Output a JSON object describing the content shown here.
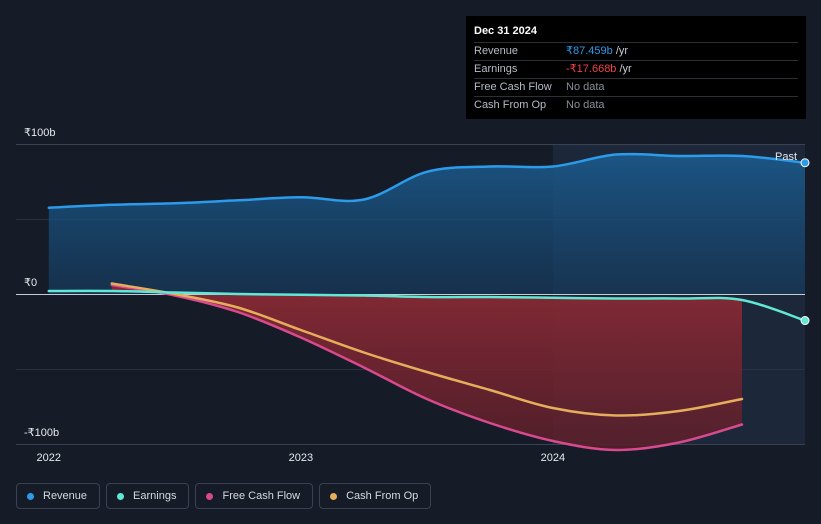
{
  "tooltip": {
    "date": "Dec 31 2024",
    "rows": [
      {
        "label": "Revenue",
        "value": "₹87.459b",
        "unit": " /yr",
        "color": "#2b9bea"
      },
      {
        "label": "Earnings",
        "value": "-₹17.668b",
        "unit": " /yr",
        "color": "#f0414a"
      },
      {
        "label": "Free Cash Flow",
        "value": "No data",
        "unit": "",
        "color": "#8a8f99"
      },
      {
        "label": "Cash From Op",
        "value": "No data",
        "unit": "",
        "color": "#8a8f99"
      }
    ]
  },
  "past_label": "Past",
  "chart_data": {
    "type": "line",
    "title": "",
    "xlabel": "",
    "ylabel": "",
    "ylim": [
      -100,
      100
    ],
    "y_tick_labels": [
      {
        "value": 100,
        "label": "₹100b"
      },
      {
        "value": 0,
        "label": "₹0"
      },
      {
        "value": -100,
        "label": "-₹100b"
      }
    ],
    "x_tick_labels": [
      {
        "value": 2022,
        "label": "2022"
      },
      {
        "value": 2023,
        "label": "2023"
      },
      {
        "value": 2024,
        "label": "2024"
      }
    ],
    "xlim": [
      2021.87,
      2025.0
    ],
    "highlight_start": 2024.0,
    "series": [
      {
        "name": "Revenue",
        "color": "#2b9bea",
        "points": [
          [
            2022.0,
            57.5
          ],
          [
            2022.25,
            59.5
          ],
          [
            2022.5,
            60.5
          ],
          [
            2022.75,
            62.5
          ],
          [
            2023.0,
            64.5
          ],
          [
            2023.25,
            63.0
          ],
          [
            2023.5,
            81.5
          ],
          [
            2023.75,
            85.0
          ],
          [
            2024.0,
            85.0
          ],
          [
            2024.25,
            93.0
          ],
          [
            2024.5,
            92.0
          ],
          [
            2024.75,
            92.0
          ],
          [
            2025.0,
            87.5
          ]
        ]
      },
      {
        "name": "Earnings",
        "color": "#5ee8d5",
        "points": [
          [
            2022.0,
            2.0
          ],
          [
            2022.25,
            2.0
          ],
          [
            2022.5,
            1.0
          ],
          [
            2022.75,
            0.0
          ],
          [
            2023.0,
            -0.5
          ],
          [
            2023.25,
            -1.0
          ],
          [
            2023.5,
            -2.0
          ],
          [
            2023.75,
            -2.0
          ],
          [
            2024.0,
            -2.5
          ],
          [
            2024.25,
            -3.0
          ],
          [
            2024.5,
            -3.0
          ],
          [
            2024.75,
            -4.0
          ],
          [
            2025.0,
            -17.7
          ]
        ]
      },
      {
        "name": "Free Cash Flow",
        "color": "#d74a8e",
        "points": [
          [
            2022.25,
            6.0
          ],
          [
            2022.5,
            -1.0
          ],
          [
            2022.75,
            -12.0
          ],
          [
            2023.0,
            -29.0
          ],
          [
            2023.25,
            -49.0
          ],
          [
            2023.5,
            -70.0
          ],
          [
            2023.75,
            -86.0
          ],
          [
            2024.0,
            -98.0
          ],
          [
            2024.25,
            -104.0
          ],
          [
            2024.5,
            -99.0
          ],
          [
            2024.75,
            -87.0
          ]
        ]
      },
      {
        "name": "Cash From Op",
        "color": "#e5ad5c",
        "points": [
          [
            2022.25,
            7.0
          ],
          [
            2022.5,
            0.0
          ],
          [
            2022.75,
            -9.0
          ],
          [
            2023.0,
            -24.0
          ],
          [
            2023.25,
            -39.0
          ],
          [
            2023.5,
            -52.0
          ],
          [
            2023.75,
            -64.0
          ],
          [
            2024.0,
            -76.0
          ],
          [
            2024.25,
            -81.0
          ],
          [
            2024.5,
            -78.0
          ],
          [
            2024.75,
            -70.0
          ]
        ]
      }
    ]
  },
  "legend": [
    {
      "label": "Revenue",
      "color": "#2b9bea"
    },
    {
      "label": "Earnings",
      "color": "#5ee8d5"
    },
    {
      "label": "Free Cash Flow",
      "color": "#d74a8e"
    },
    {
      "label": "Cash From Op",
      "color": "#e5ad5c"
    }
  ]
}
